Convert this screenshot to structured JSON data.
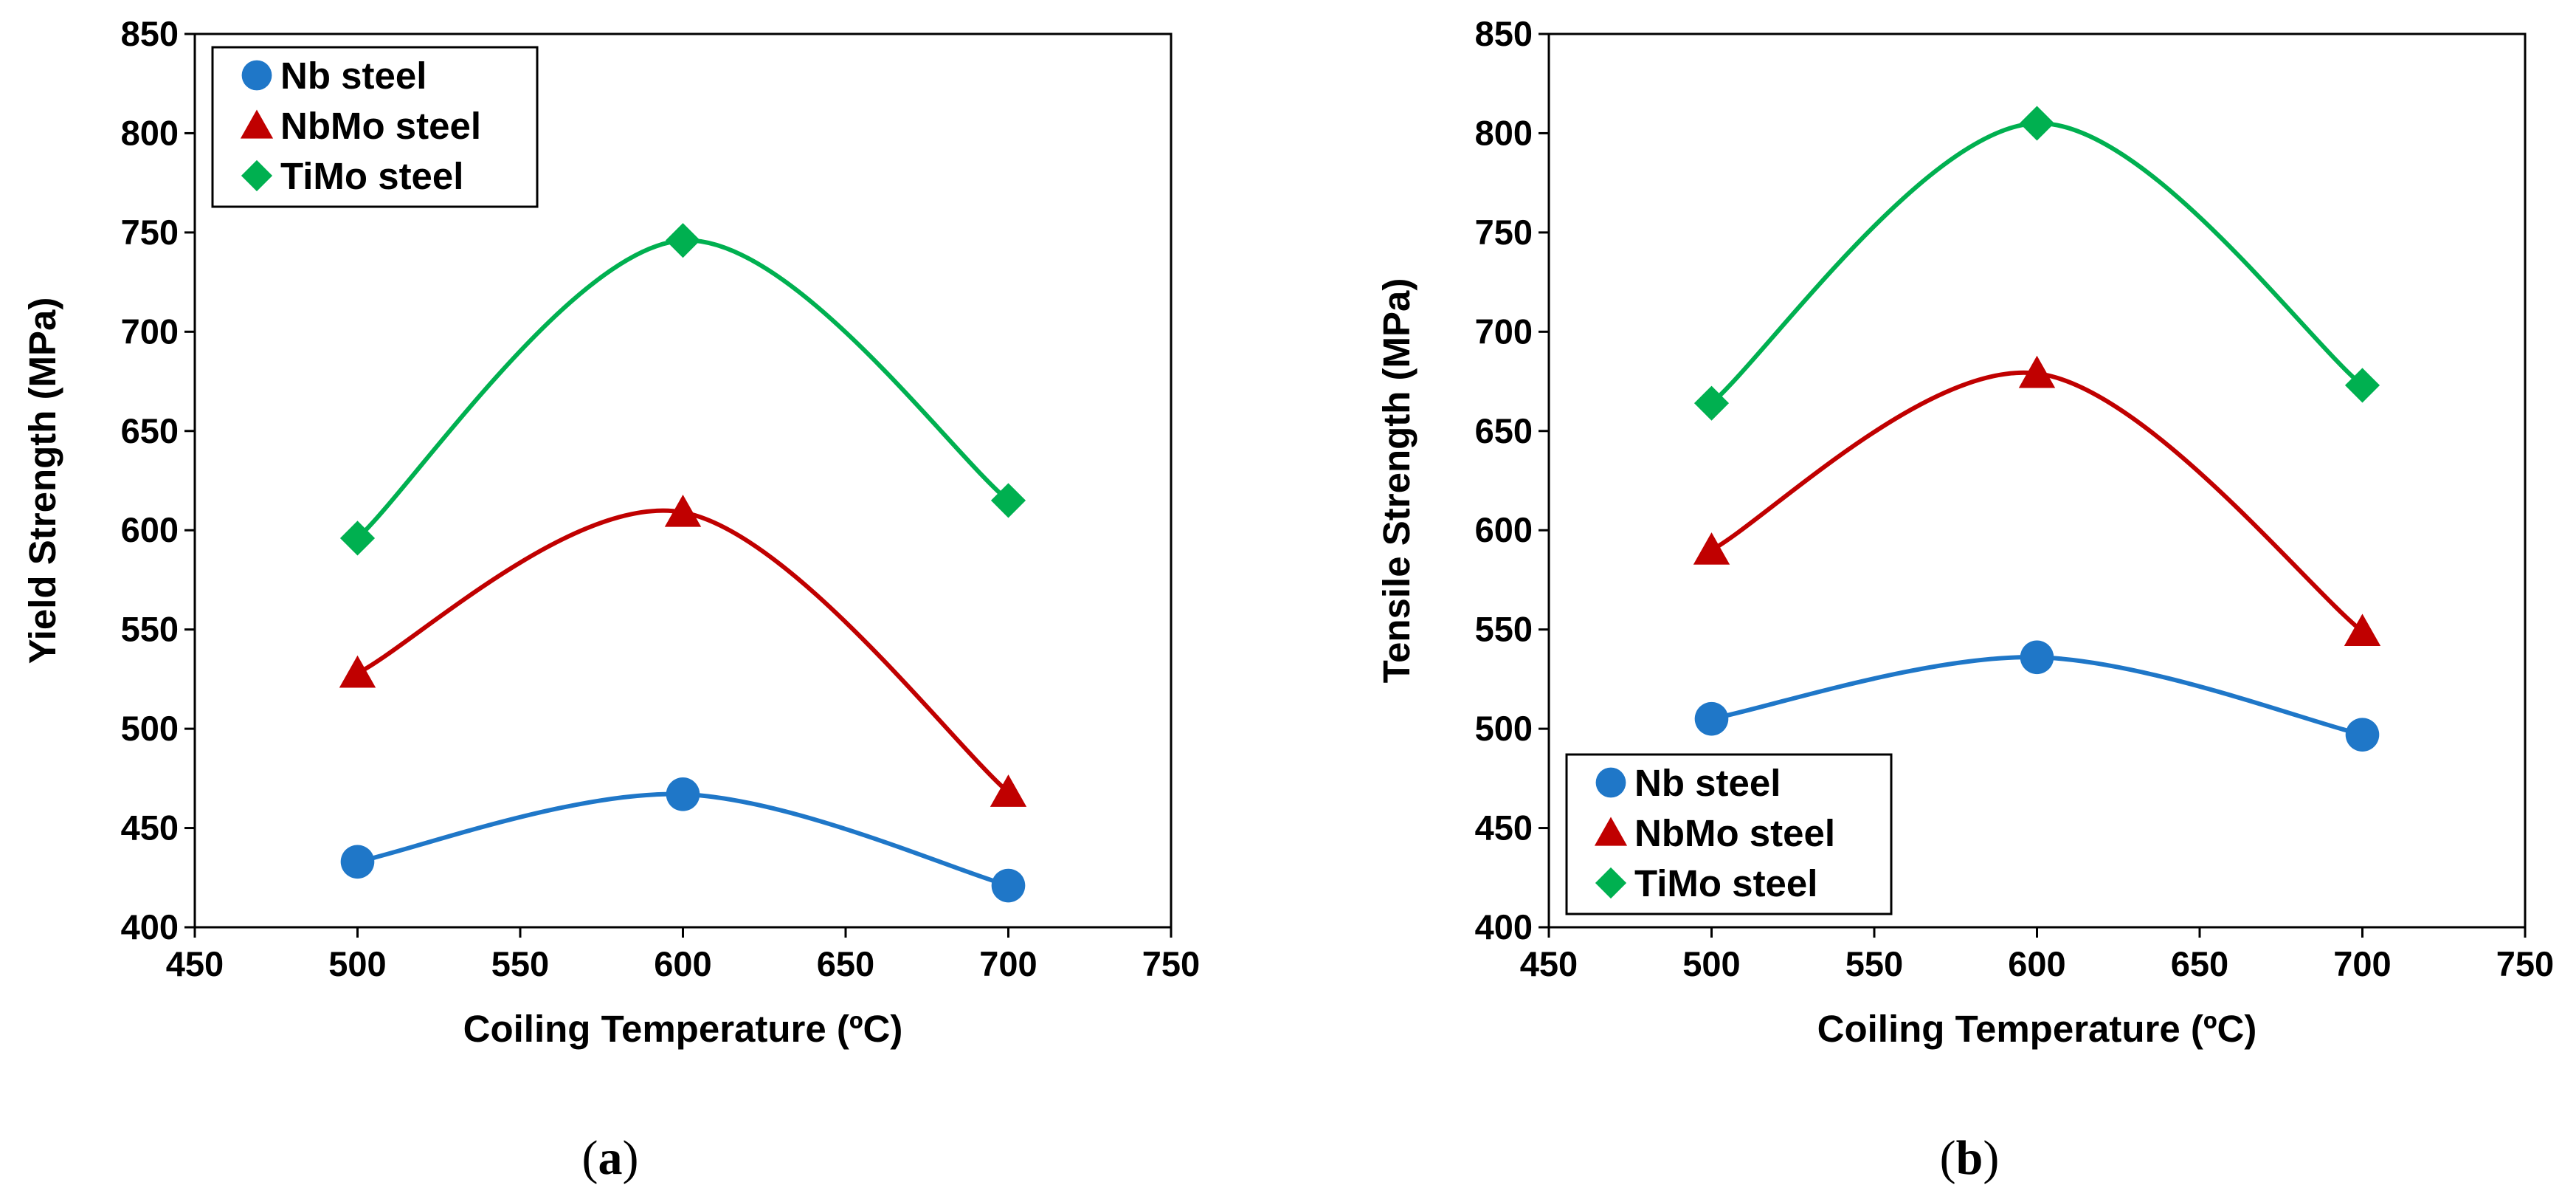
{
  "chart_data": [
    {
      "type": "scatter",
      "panel_label_text": "a",
      "xlabel": "Coiling Temperature (ºC)",
      "ylabel": "Yield Strength (MPa)",
      "xlim": [
        450,
        750
      ],
      "ylim": [
        400,
        850
      ],
      "xticks": [
        "450",
        "500",
        "550",
        "600",
        "650",
        "700",
        "750"
      ],
      "yticks": [
        "400",
        "450",
        "500",
        "550",
        "600",
        "650",
        "700",
        "750",
        "800",
        "850"
      ],
      "legend_position": "top-left",
      "grid": false,
      "series": [
        {
          "name": "Nb steel",
          "marker": "circle",
          "color": "#1F77C8",
          "x": [
            500,
            600,
            700
          ],
          "values": [
            433,
            467,
            421
          ]
        },
        {
          "name": "NbMo steel",
          "marker": "triangle",
          "color": "#C00000",
          "x": [
            500,
            600,
            700
          ],
          "values": [
            528,
            609,
            468
          ]
        },
        {
          "name": "TiMo steel",
          "marker": "diamond",
          "color": "#00B050",
          "x": [
            500,
            600,
            700
          ],
          "values": [
            596,
            746,
            615
          ]
        }
      ]
    },
    {
      "type": "scatter",
      "panel_label_text": "b",
      "xlabel": "Coiling Temperature (ºC)",
      "ylabel": "Tensile Strength (MPa)",
      "xlim": [
        450,
        750
      ],
      "ylim": [
        400,
        850
      ],
      "xticks": [
        "450",
        "500",
        "550",
        "600",
        "650",
        "700",
        "750"
      ],
      "yticks": [
        "400",
        "450",
        "500",
        "550",
        "600",
        "650",
        "700",
        "750",
        "800",
        "850"
      ],
      "legend_position": "bottom-left",
      "grid": false,
      "series": [
        {
          "name": "Nb steel",
          "marker": "circle",
          "color": "#1F77C8",
          "x": [
            500,
            600,
            700
          ],
          "values": [
            505,
            536,
            497
          ]
        },
        {
          "name": "NbMo steel",
          "marker": "triangle",
          "color": "#C00000",
          "x": [
            500,
            600,
            700
          ],
          "values": [
            590,
            679,
            549
          ]
        },
        {
          "name": "TiMo steel",
          "marker": "diamond",
          "color": "#00B050",
          "x": [
            500,
            600,
            700
          ],
          "values": [
            664,
            805,
            673
          ]
        }
      ]
    }
  ]
}
